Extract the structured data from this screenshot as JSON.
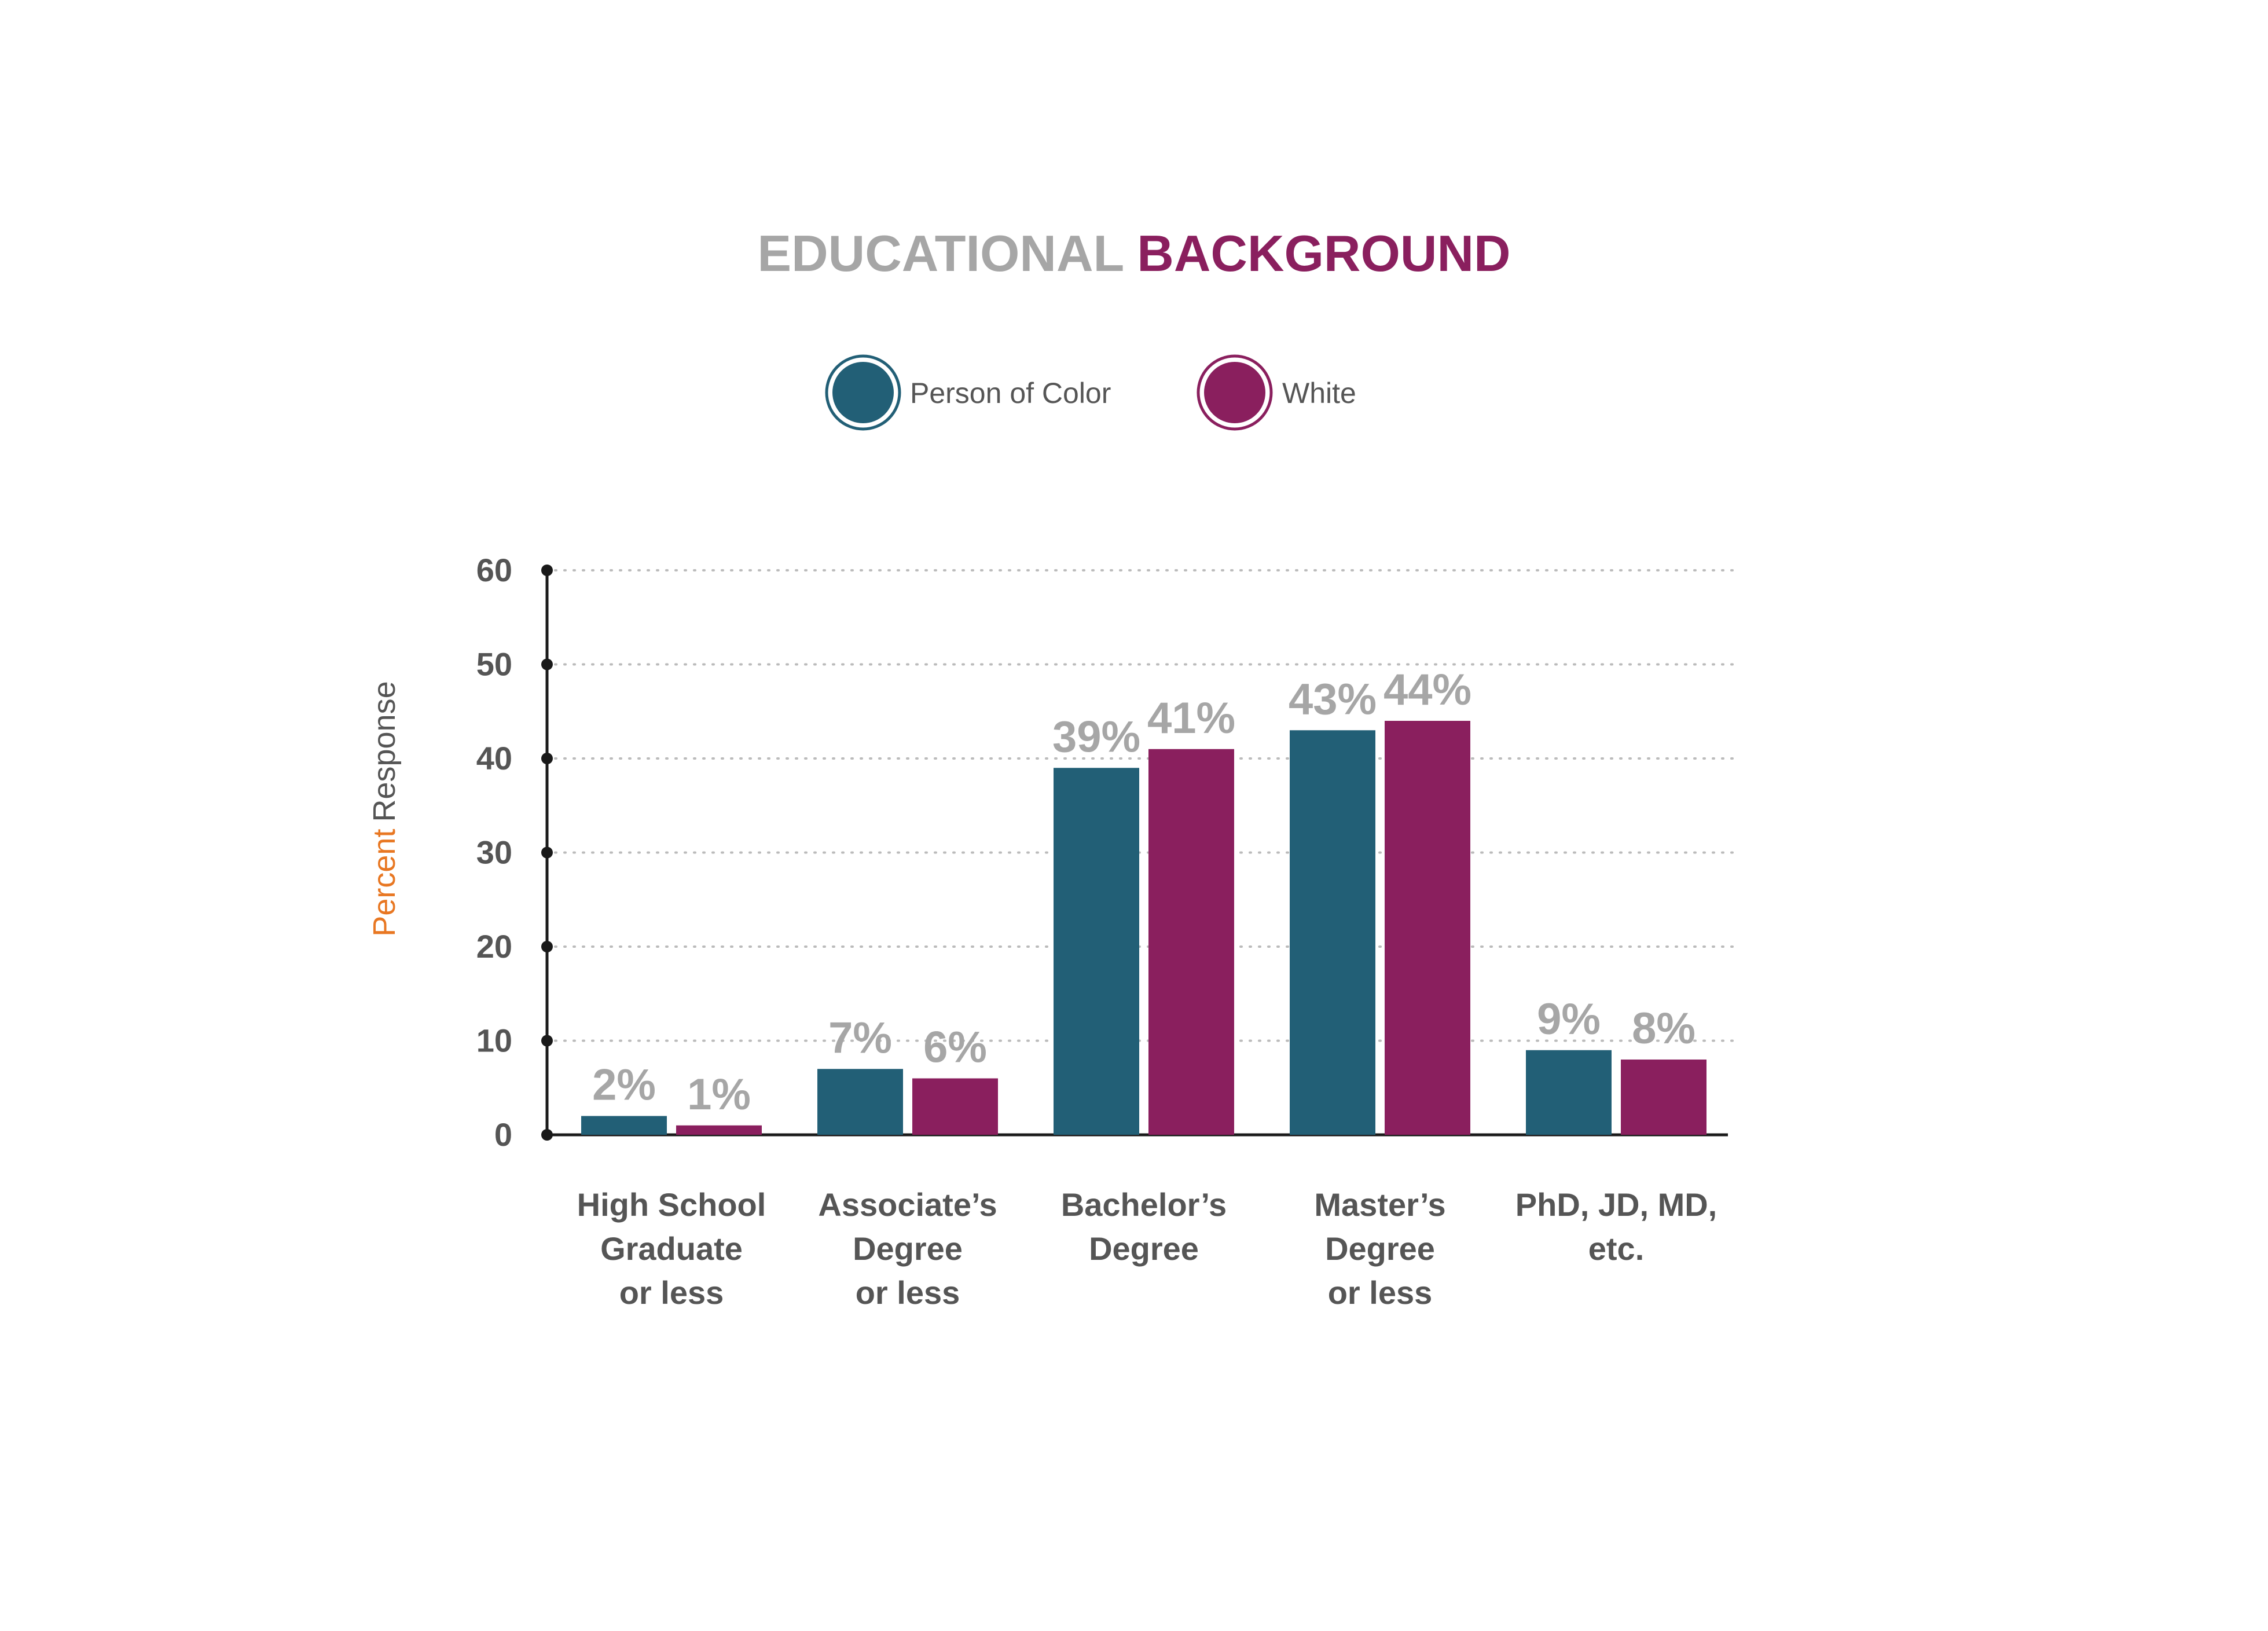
{
  "title": {
    "part1": "EDUCATIONAL",
    "part2": "BACKGROUND"
  },
  "colors": {
    "title_part1": "#a6a6a6",
    "title_part2": "#8a1f5e",
    "series1": "#225f76",
    "series2": "#8a1f5e",
    "axis_text": "#555555",
    "value_label": "#a6a6a6",
    "ylabel_part1": "#e87722",
    "ylabel_part2": "#555555",
    "grid": "#bbbbbb",
    "axis": "#1a1a1a"
  },
  "ylabel": {
    "part1": "Percent",
    "part2": "Response"
  },
  "chart_data": {
    "type": "bar",
    "title": "EDUCATIONAL BACKGROUND",
    "xlabel": "",
    "ylabel": "Percent Response",
    "ylim": [
      0,
      60
    ],
    "yticks": [
      0,
      10,
      20,
      30,
      40,
      50,
      60
    ],
    "grid": true,
    "legend_position": "top",
    "categories": [
      [
        "High School",
        "Graduate",
        "or less"
      ],
      [
        "Associate’s",
        "Degree",
        "or less"
      ],
      [
        "Bachelor’s",
        "Degree"
      ],
      [
        "Master’s",
        "Degree",
        "or less"
      ],
      [
        "PhD, JD, MD,",
        "etc."
      ]
    ],
    "series": [
      {
        "name": "Person of Color",
        "values": [
          2,
          7,
          39,
          43,
          9
        ],
        "labels": [
          "2%",
          "7%",
          "39%",
          "43%",
          "9%"
        ]
      },
      {
        "name": "White",
        "values": [
          1,
          6,
          41,
          44,
          8
        ],
        "labels": [
          "1%",
          "6%",
          "41%",
          "44%",
          "8%"
        ]
      }
    ]
  }
}
